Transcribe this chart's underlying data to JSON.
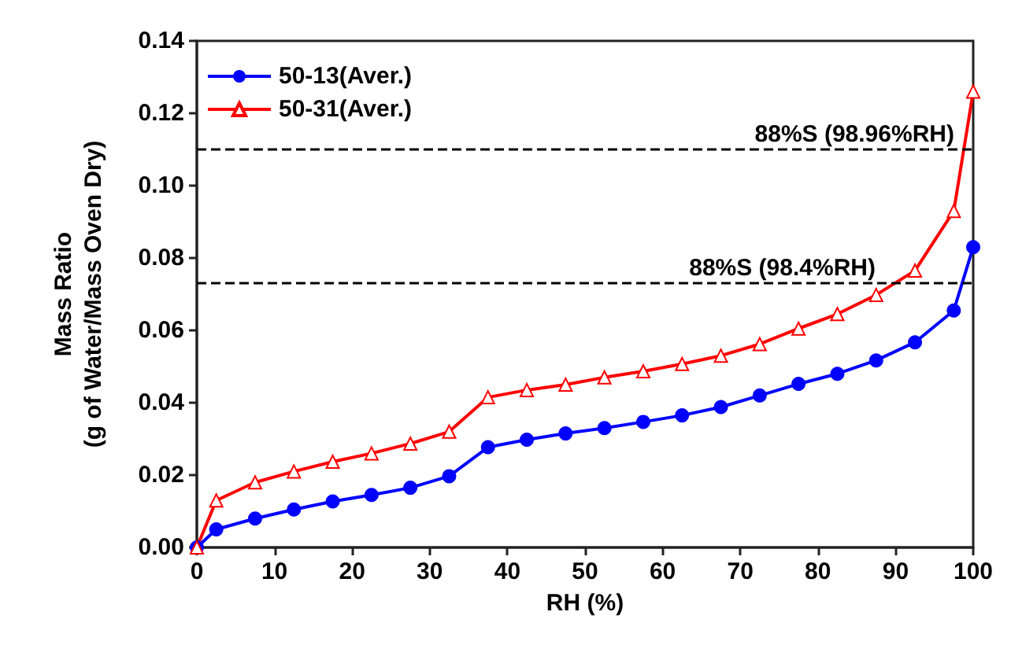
{
  "chart_data": {
    "type": "line",
    "xlabel": "RH (%)",
    "ylabel": "Mass Ratio\n(g of Water/Mass Oven Dry)",
    "x": [
      0,
      2.5,
      7.5,
      12.5,
      17.5,
      22.5,
      27.5,
      32.5,
      37.5,
      42.5,
      47.5,
      52.5,
      57.5,
      62.5,
      67.5,
      72.5,
      77.5,
      82.5,
      87.5,
      92.5,
      97.5,
      100
    ],
    "series": [
      {
        "name": "50-13(Aver.)",
        "color": "#0000ff",
        "marker": "circle",
        "values": [
          0,
          0.005,
          0.008,
          0.0105,
          0.0127,
          0.0145,
          0.0165,
          0.0197,
          0.0277,
          0.0298,
          0.0315,
          0.033,
          0.0347,
          0.0365,
          0.0388,
          0.042,
          0.0452,
          0.048,
          0.0517,
          0.0567,
          0.0655,
          0.083
        ]
      },
      {
        "name": "50-31(Aver.)",
        "color": "#ff0000",
        "marker": "triangle",
        "values": [
          0,
          0.013,
          0.018,
          0.021,
          0.0237,
          0.026,
          0.0287,
          0.032,
          0.0415,
          0.0435,
          0.045,
          0.047,
          0.0487,
          0.0507,
          0.053,
          0.0562,
          0.0605,
          0.0645,
          0.0698,
          0.0765,
          0.093,
          0.126
        ]
      }
    ],
    "xlim": [
      0,
      100
    ],
    "xticks": [
      0,
      10,
      20,
      30,
      40,
      50,
      60,
      70,
      80,
      90,
      100
    ],
    "ylim": [
      0,
      0.14
    ],
    "yticks": [
      {
        "value": 0,
        "label": "0.00"
      },
      {
        "value": 0.02,
        "label": "0.02"
      },
      {
        "value": 0.04,
        "label": "0.04"
      },
      {
        "value": 0.06,
        "label": "0.06"
      },
      {
        "value": 0.08,
        "label": "0.08"
      },
      {
        "value": 0.1,
        "label": "0.10"
      },
      {
        "value": 0.12,
        "label": "0.12"
      },
      {
        "value": 0.14,
        "label": "0.14"
      }
    ],
    "ref_lines": [
      {
        "axis": "y",
        "value": 0.11,
        "label": "88%S (98.96%RH)",
        "color": "#000000",
        "line_style": "dashed"
      },
      {
        "axis": "y",
        "value": 0.073,
        "label": "88%S (98.4%RH)",
        "color": "#000000",
        "line_style": "dashed"
      }
    ],
    "legend": "top left",
    "grid": false,
    "line_style": "solid"
  }
}
